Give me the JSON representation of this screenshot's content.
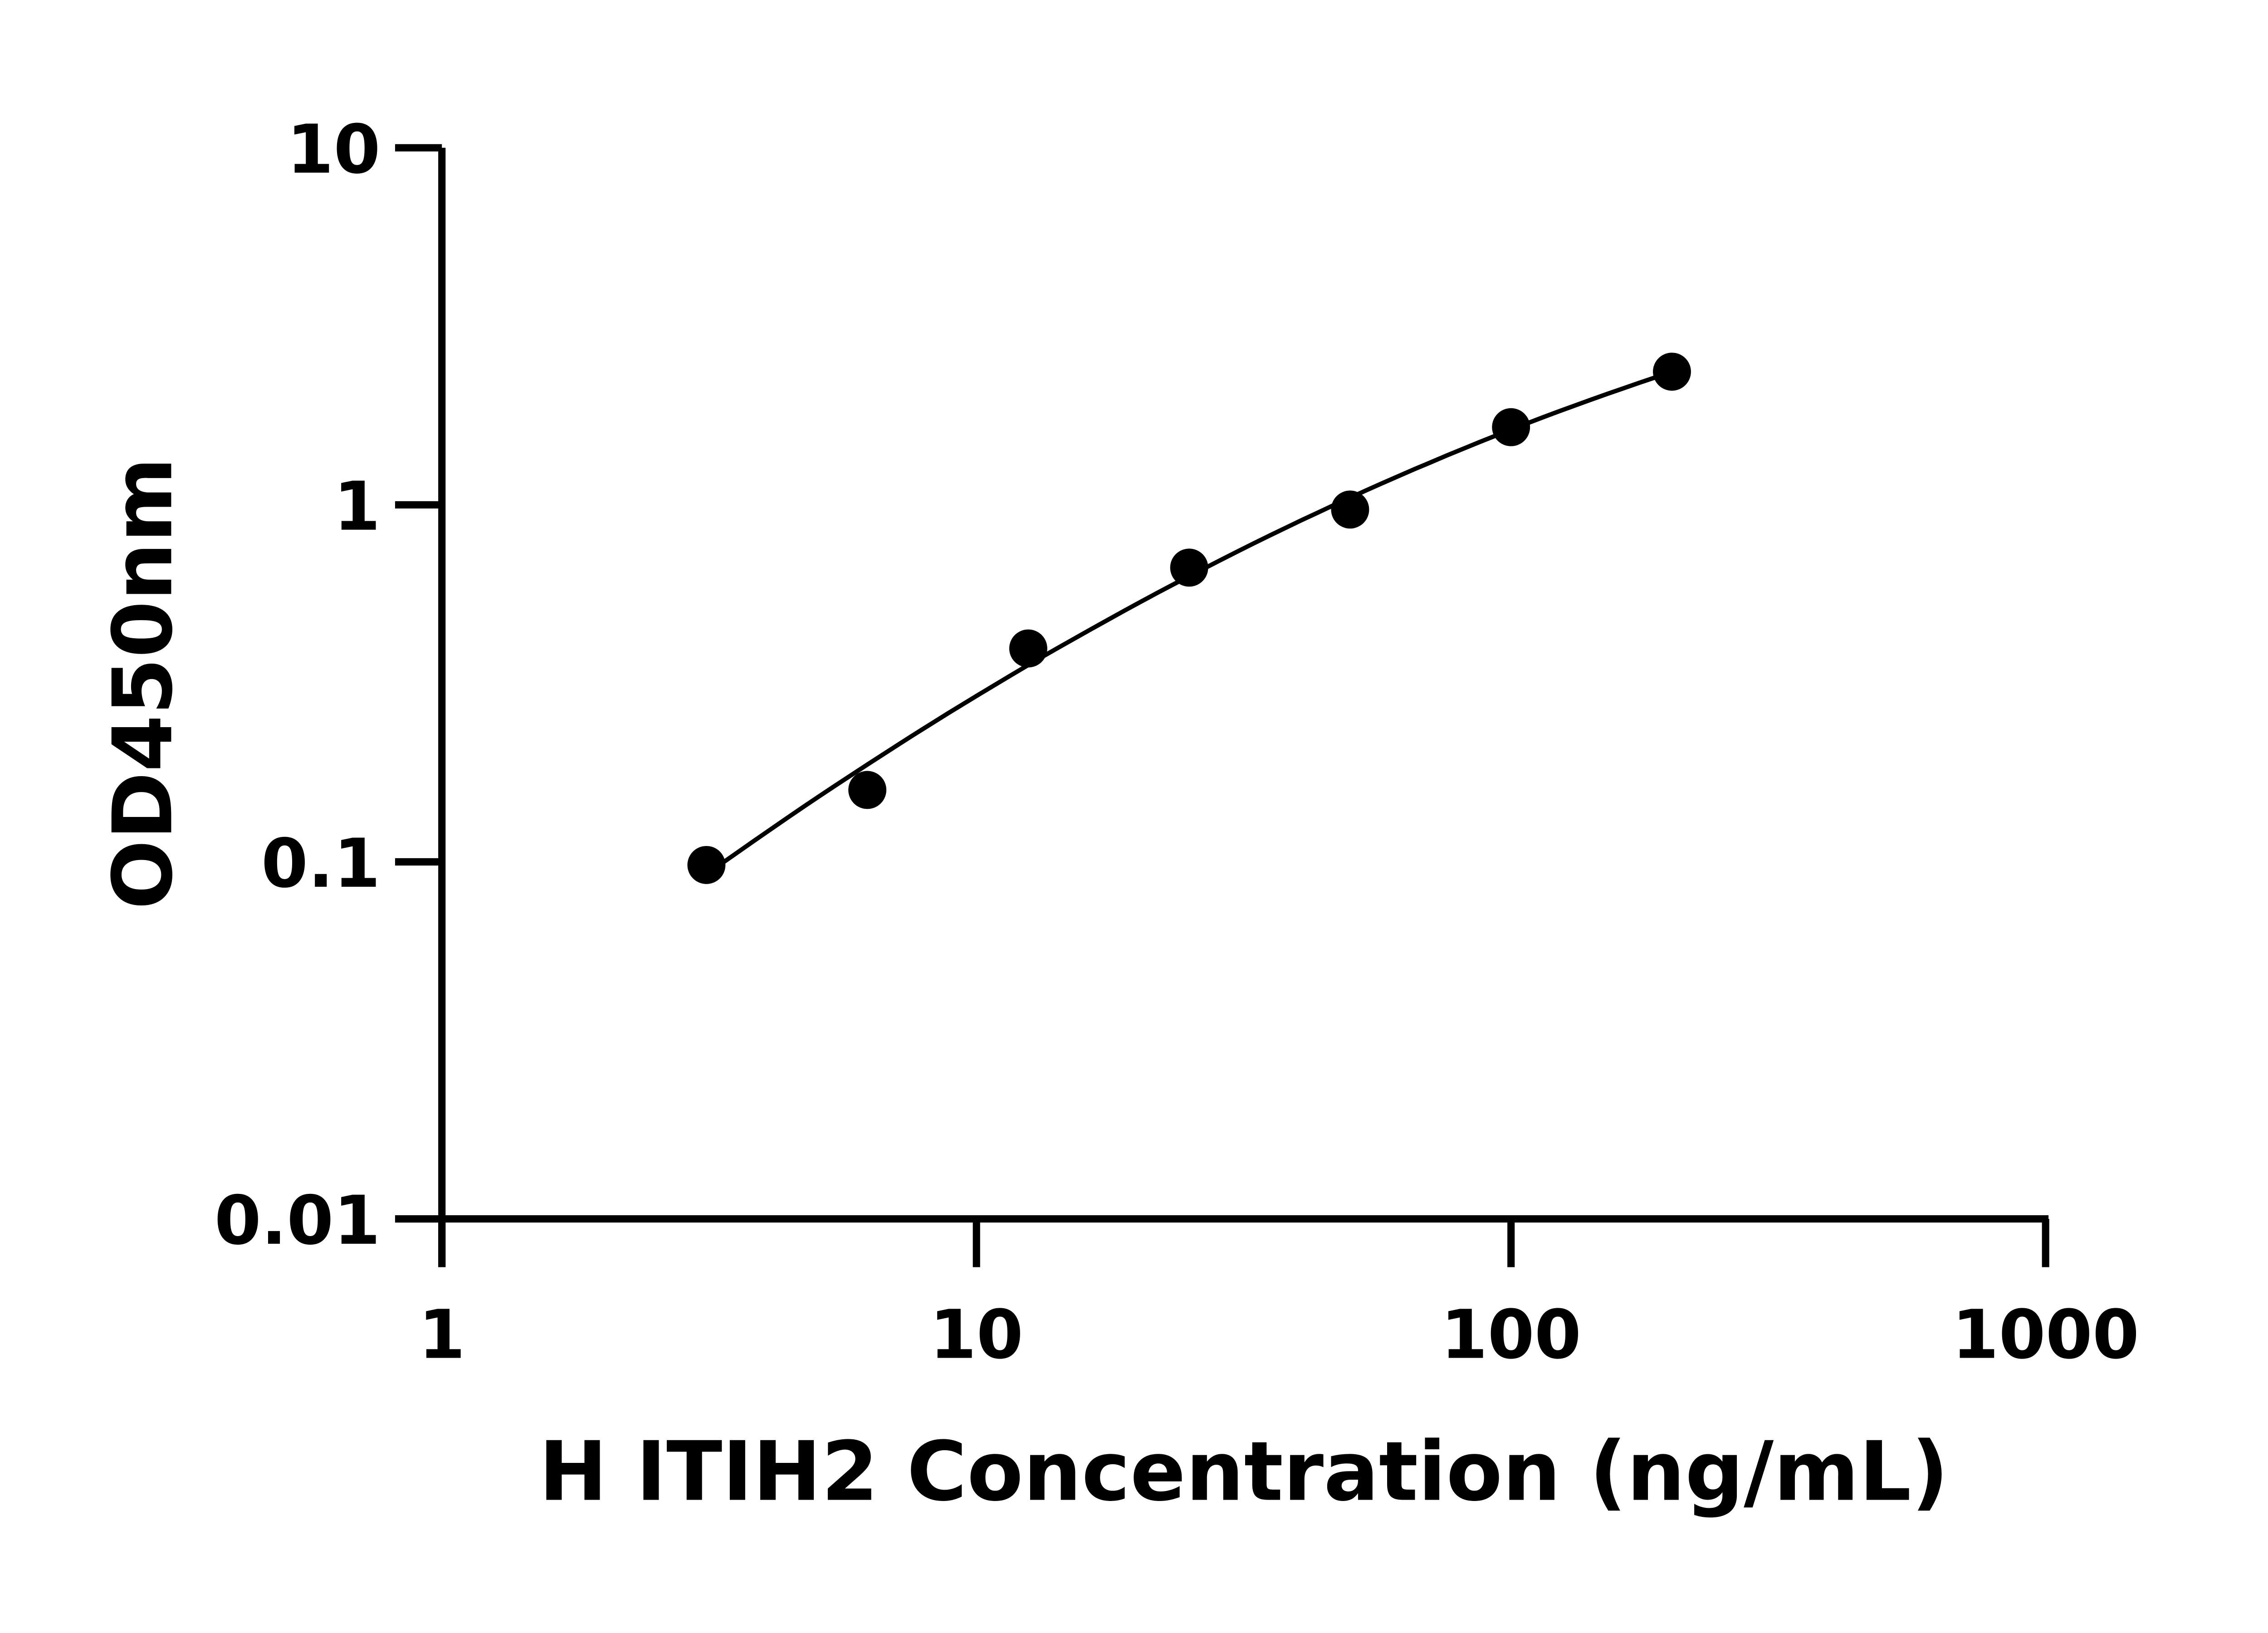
{
  "chart_data": {
    "type": "scatter",
    "title": "",
    "xlabel": "H ITIH2 Concentration (ng/mL)",
    "ylabel": "OD450nm",
    "x_scale": "log",
    "y_scale": "log",
    "xlim": [
      1,
      1000
    ],
    "ylim": [
      0.01,
      10
    ],
    "x_ticks": [
      "1",
      "10",
      "100",
      "1000"
    ],
    "y_ticks": [
      "0.01",
      "0.1",
      "1",
      "10"
    ],
    "grid": false,
    "fit_line": true,
    "series": [
      {
        "x": [
          3.125,
          6.25,
          12.5,
          25,
          50,
          100,
          200
        ],
        "y": [
          0.098,
          0.159,
          0.396,
          0.667,
          0.97,
          1.65,
          2.36
        ]
      }
    ],
    "colors": {
      "marker": "#000000",
      "line": "#000000",
      "axis": "#000000"
    }
  }
}
